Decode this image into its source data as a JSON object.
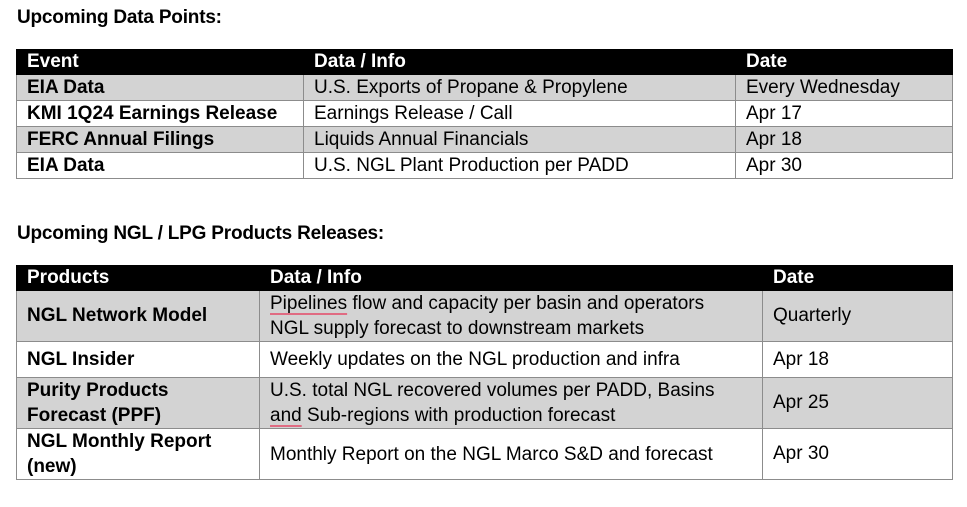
{
  "section1": {
    "title": "Upcoming Data Points:",
    "headers": [
      "Event",
      "Data / Info",
      "Date"
    ],
    "rows": [
      {
        "event": "EIA Data",
        "info": "U.S. Exports of Propane & Propylene",
        "date": "Every Wednesday"
      },
      {
        "event": "KMI 1Q24 Earnings Release",
        "info": "Earnings Release / Call",
        "date": "Apr 17"
      },
      {
        "event": "FERC Annual Filings",
        "info": "Liquids Annual Financials",
        "date": "Apr 18"
      },
      {
        "event": "EIA Data",
        "info": "U.S. NGL Plant Production per PADD",
        "date": "Apr 30"
      }
    ]
  },
  "section2": {
    "title": "Upcoming NGL / LPG Products Releases:",
    "headers": [
      "Products",
      "Data / Info",
      "Date"
    ],
    "rows": [
      {
        "product": "NGL Network Model",
        "info_line1_word": "Pipelines",
        "info_line1_rest": " flow and capacity per basin and operators",
        "info_line2": "NGL supply forecast to downstream markets",
        "date": "Quarterly"
      },
      {
        "product": "NGL Insider",
        "info": "Weekly updates on the NGL production and infra",
        "date": "Apr 18"
      },
      {
        "product": "Purity Products Forecast (PPF)",
        "info_line1": "U.S. total NGL recovered volumes per PADD, Basins",
        "info_line2_word": "and",
        "info_line2_rest": " Sub-regions with production forecast",
        "date": "Apr 25"
      },
      {
        "product": "NGL Monthly Report (new)",
        "info": "Monthly Report on the NGL Marco S&D and forecast",
        "date": "Apr 30"
      }
    ]
  }
}
